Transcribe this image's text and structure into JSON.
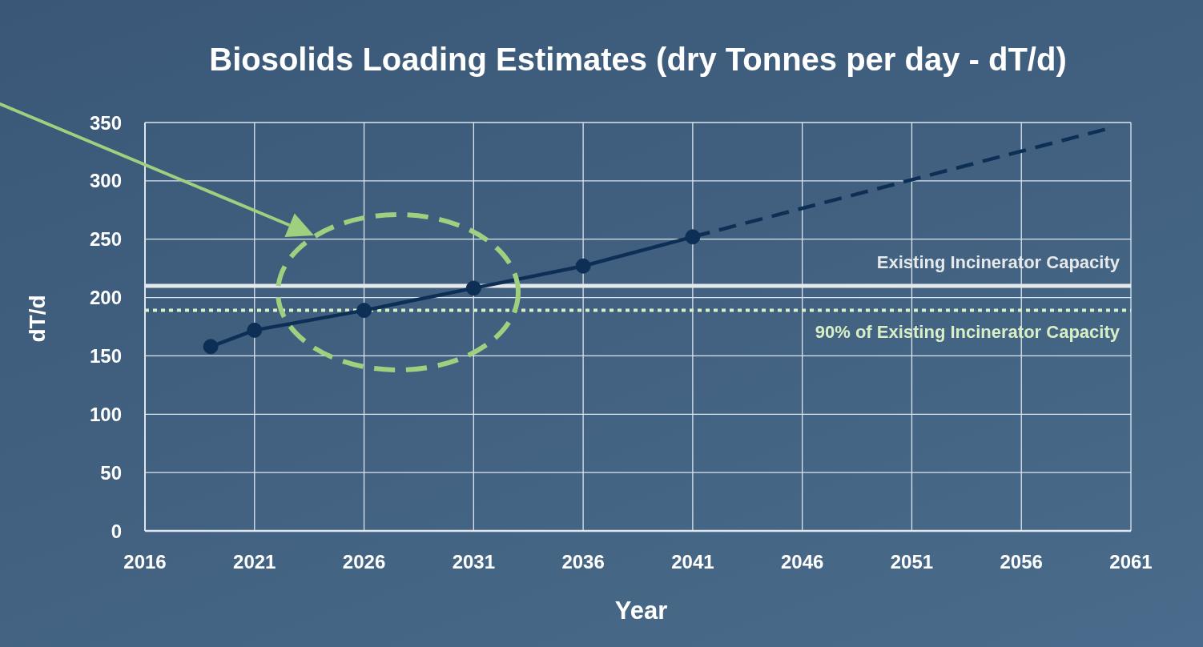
{
  "chart_data": {
    "type": "line",
    "title": "Biosolids Loading Estimates (dry Tonnes per day - dT/d)",
    "xlabel": "Year",
    "ylabel": "dT/d",
    "xlim": [
      2016,
      2061
    ],
    "xticks": [
      2016,
      2021,
      2026,
      2031,
      2036,
      2041,
      2046,
      2051,
      2056,
      2061
    ],
    "ylim": [
      0,
      350
    ],
    "yticks": [
      0,
      50,
      100,
      150,
      200,
      250,
      300,
      350
    ],
    "grid": true,
    "series": [
      {
        "color": "#0e2f55",
        "x": [
          2019,
          2021,
          2026,
          2031,
          2036,
          2041
        ],
        "values": [
          158,
          172,
          189,
          208,
          227,
          252
        ],
        "marker": "circle",
        "line_style": "solid"
      },
      {
        "color": "#0e2f55",
        "x": [
          2041,
          2060
        ],
        "values": [
          252,
          345
        ],
        "marker": "none",
        "line_style": "dashed"
      }
    ],
    "ref_lines": [
      {
        "axis": "y",
        "value": 210,
        "label": "Existing Incinerator Capacity",
        "color": "#e6e9ec",
        "line_style": "solid"
      },
      {
        "axis": "y",
        "value": 189,
        "label": "90% of Existing Incinerator Capacity",
        "color": "#d8efc6",
        "line_style": "dotted"
      }
    ]
  }
}
